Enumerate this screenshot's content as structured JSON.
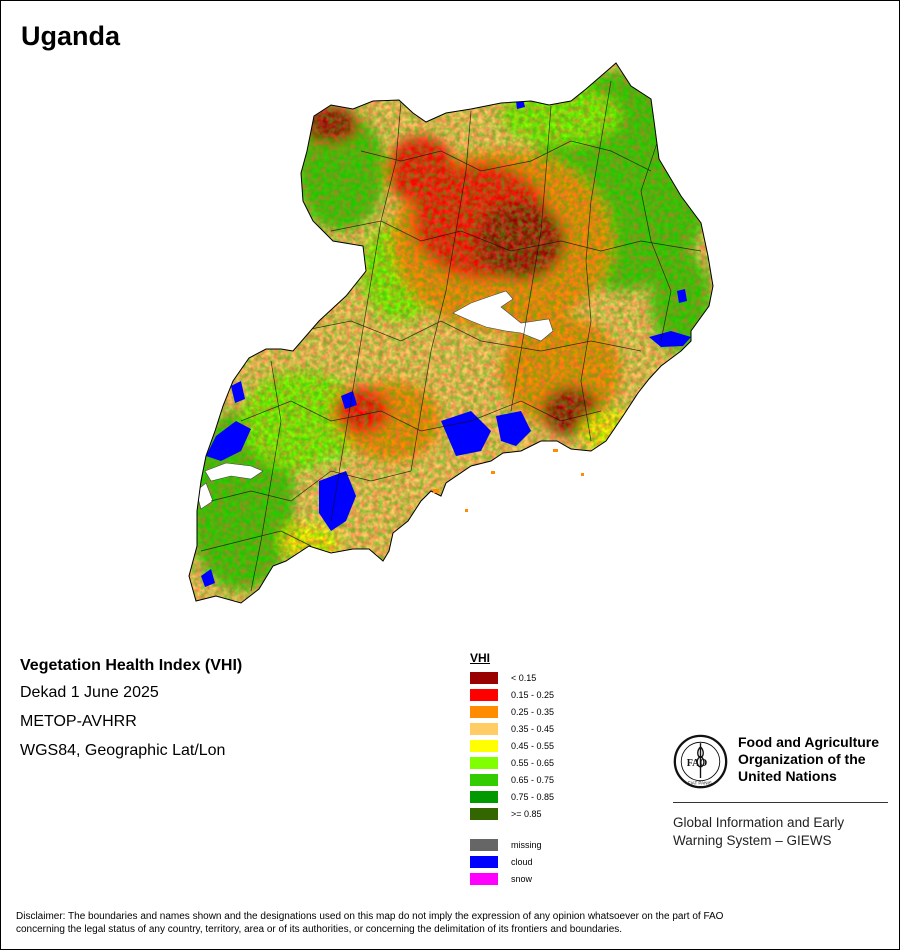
{
  "map": {
    "title": "Uganda",
    "product_title": "Vegetation Health Index (VHI)",
    "dekad": "Dekad 1 June 2025",
    "sensor": "METOP-AVHRR",
    "projection": "WGS84, Geographic Lat/Lon"
  },
  "legend": {
    "title": "VHI",
    "classes": [
      {
        "label": "< 0.15",
        "color": "#990000"
      },
      {
        "label": "0.15 - 0.25",
        "color": "#ff0000"
      },
      {
        "label": "0.25 - 0.35",
        "color": "#ff8c00"
      },
      {
        "label": "0.35 - 0.45",
        "color": "#ffcc66"
      },
      {
        "label": "0.45 - 0.55",
        "color": "#ffff00"
      },
      {
        "label": "0.55 - 0.65",
        "color": "#80ff00"
      },
      {
        "label": "0.65 - 0.75",
        "color": "#33cc00"
      },
      {
        "label": "0.75 - 0.85",
        "color": "#009900"
      },
      {
        "label": ">= 0.85",
        "color": "#336600"
      }
    ],
    "special": [
      {
        "label": "missing",
        "color": "#666666"
      },
      {
        "label": "cloud",
        "color": "#0000ff"
      },
      {
        "label": "snow",
        "color": "#ff00ff"
      }
    ]
  },
  "organization": {
    "name_line1": "Food and Agriculture",
    "name_line2": "Organization of the",
    "name_line3": "United Nations",
    "logo_text": "FAO",
    "logo_motto": "FIAT PANIS",
    "system_line1": "Global Information and Early",
    "system_line2": "Warning System – GIEWS"
  },
  "disclaimer": {
    "line1": "Disclaimer: The boundaries and names shown and the designations used on this map do not imply the expression of any opinion whatsoever on the part of FAO",
    "line2": "concerning the legal status of any country, territory, area or of its authorities, or concerning the delimitation of its frontiers and boundaries."
  }
}
